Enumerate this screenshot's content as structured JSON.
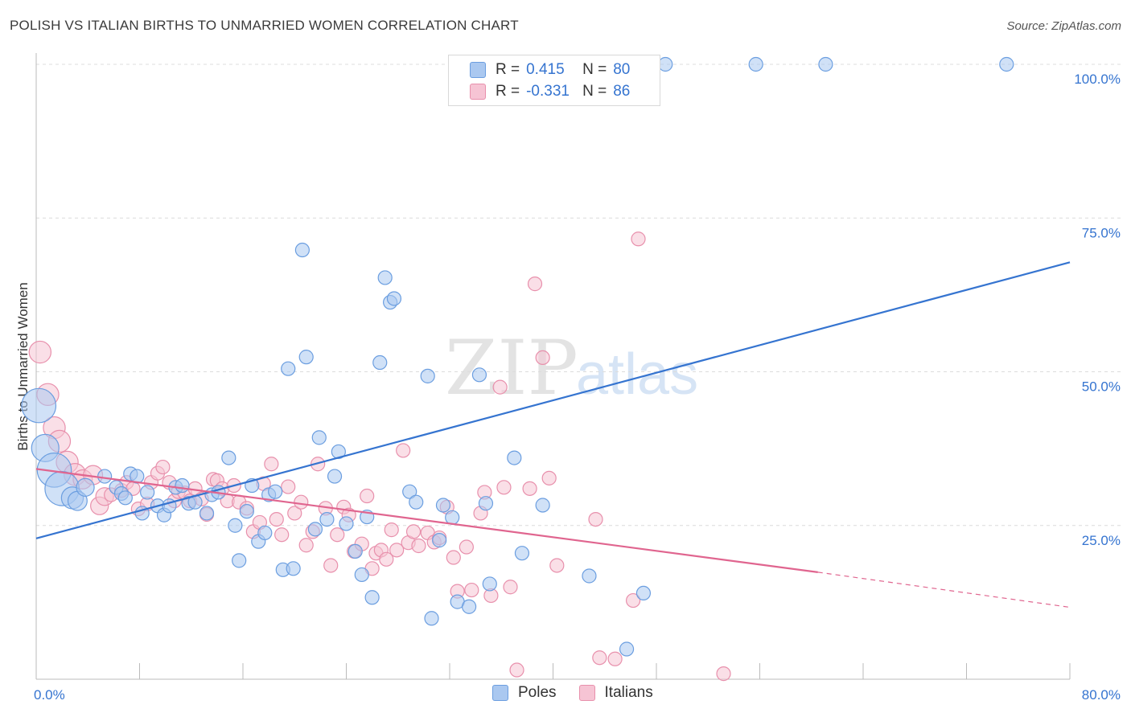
{
  "header": {
    "title": "POLISH VS ITALIAN BIRTHS TO UNMARRIED WOMEN CORRELATION CHART",
    "source": "Source: ZipAtlas.com"
  },
  "watermark": {
    "zip": "ZIP",
    "atlas": "atlas"
  },
  "legend": {
    "rows": [
      {
        "label": "R =",
        "r": "0.415",
        "n_label": "N =",
        "n": "80",
        "color": "#aac8f0",
        "border": "#6b9ee0"
      },
      {
        "label": "R =",
        "r": "-0.331",
        "n_label": "N =",
        "n": "86",
        "color": "#f6c4d4",
        "border": "#e890ac"
      }
    ]
  },
  "bottom_legend": {
    "poles": "Poles",
    "italians": "Italians"
  },
  "chart_data": {
    "type": "scatter",
    "title": "POLISH VS ITALIAN BIRTHS TO UNMARRIED WOMEN CORRELATION CHART",
    "xlabel": "",
    "ylabel": "Births to Unmarried Women",
    "xlim": [
      0,
      80
    ],
    "ylim": [
      0,
      100
    ],
    "x_tick_labels": [
      "0.0%",
      "80.0%"
    ],
    "y_ticks": [
      25,
      50,
      75,
      100
    ],
    "y_tick_labels": [
      "25.0%",
      "50.0%",
      "75.0%",
      "100.0%"
    ],
    "grid": true,
    "legend_position": "top-center",
    "colors": {
      "poles": "#3574d0",
      "italians": "#e0658f",
      "poles_fill": "#aac8f0",
      "italians_fill": "#f6c4d4"
    },
    "series": [
      {
        "name": "Poles",
        "trend": {
          "x": [
            0,
            80
          ],
          "y": [
            22.9,
            67.8
          ]
        },
        "points": [
          [
            0.2,
            44.5,
            2.5
          ],
          [
            0.7,
            37.6,
            2
          ],
          [
            1.4,
            34.0,
            2.5
          ],
          [
            2.0,
            31.0,
            2.5
          ],
          [
            2.8,
            29.5,
            1.6
          ],
          [
            3.2,
            29.0,
            1.4
          ],
          [
            3.8,
            31.2,
            1.3
          ],
          [
            5.3,
            33.0,
            1
          ],
          [
            6.2,
            31.2,
            1
          ],
          [
            6.6,
            30.2,
            1
          ],
          [
            6.9,
            29.5,
            1
          ],
          [
            7.3,
            33.4,
            1
          ],
          [
            7.8,
            33.0,
            1
          ],
          [
            8.2,
            27.0,
            1
          ],
          [
            8.6,
            30.4,
            1
          ],
          [
            9.4,
            28.2,
            1
          ],
          [
            9.9,
            26.7,
            1
          ],
          [
            10.3,
            28.2,
            1
          ],
          [
            10.8,
            31.2,
            1
          ],
          [
            11.3,
            31.5,
            1
          ],
          [
            11.8,
            28.6,
            1
          ],
          [
            12.3,
            28.8,
            1
          ],
          [
            13.2,
            27.0,
            1
          ],
          [
            13.6,
            30.0,
            1
          ],
          [
            14.1,
            30.4,
            1
          ],
          [
            14.9,
            36.0,
            1
          ],
          [
            15.4,
            25.0,
            1
          ],
          [
            15.7,
            19.3,
            1
          ],
          [
            16.3,
            27.3,
            1
          ],
          [
            16.7,
            31.5,
            1
          ],
          [
            17.2,
            22.4,
            1
          ],
          [
            17.7,
            23.8,
            1
          ],
          [
            18.0,
            30.0,
            1
          ],
          [
            18.5,
            30.5,
            1
          ],
          [
            19.1,
            17.8,
            1
          ],
          [
            19.5,
            50.5,
            1
          ],
          [
            19.9,
            18.0,
            1
          ],
          [
            20.6,
            69.8,
            1
          ],
          [
            20.9,
            52.4,
            1
          ],
          [
            21.6,
            24.4,
            1
          ],
          [
            21.9,
            39.3,
            1
          ],
          [
            22.5,
            26.0,
            1
          ],
          [
            23.1,
            33.0,
            1
          ],
          [
            23.4,
            37.0,
            1
          ],
          [
            24.0,
            25.3,
            1
          ],
          [
            24.7,
            20.8,
            1
          ],
          [
            25.2,
            17.0,
            1
          ],
          [
            25.6,
            26.4,
            1
          ],
          [
            26.0,
            13.3,
            1
          ],
          [
            26.6,
            51.5,
            1
          ],
          [
            27.0,
            65.3,
            1
          ],
          [
            27.4,
            61.3,
            1
          ],
          [
            27.7,
            61.9,
            1
          ],
          [
            28.9,
            30.5,
            1
          ],
          [
            29.4,
            28.8,
            1
          ],
          [
            30.3,
            49.3,
            1
          ],
          [
            30.6,
            9.9,
            1
          ],
          [
            31.2,
            22.6,
            1
          ],
          [
            31.5,
            28.3,
            1
          ],
          [
            32.2,
            26.3,
            1
          ],
          [
            32.6,
            12.6,
            1
          ],
          [
            33.5,
            11.8,
            1
          ],
          [
            34.3,
            49.5,
            1
          ],
          [
            34.8,
            28.6,
            1
          ],
          [
            35.1,
            15.5,
            1
          ],
          [
            37.0,
            36.0,
            1
          ],
          [
            37.6,
            20.5,
            1
          ],
          [
            39.2,
            28.3,
            1
          ],
          [
            42.8,
            16.8,
            1
          ],
          [
            45.7,
            4.9,
            1
          ],
          [
            47.0,
            14.0,
            1
          ],
          [
            35.7,
            100.0,
            1
          ],
          [
            48.7,
            100.0,
            1
          ],
          [
            55.7,
            100.0,
            1
          ],
          [
            61.1,
            100.0,
            1
          ],
          [
            75.1,
            100.0,
            1
          ]
        ]
      },
      {
        "name": "Italians",
        "trend": {
          "x": [
            0,
            60.5
          ],
          "y": [
            34.2,
            17.4
          ]
        },
        "trend_dashed": {
          "x": [
            60.5,
            80
          ],
          "y": [
            17.4,
            11.7
          ]
        },
        "points": [
          [
            0.3,
            53.2,
            1.6
          ],
          [
            0.9,
            46.3,
            1.6
          ],
          [
            1.4,
            40.9,
            1.6
          ],
          [
            1.8,
            38.7,
            1.6
          ],
          [
            2.4,
            35.3,
            1.6
          ],
          [
            3.0,
            33.3,
            1.6
          ],
          [
            3.6,
            32.5,
            1.4
          ],
          [
            4.4,
            33.2,
            1.4
          ],
          [
            4.9,
            28.2,
            1.3
          ],
          [
            5.3,
            29.7,
            1.3
          ],
          [
            5.8,
            30.0,
            1
          ],
          [
            6.6,
            30.7,
            1
          ],
          [
            7.0,
            32.0,
            1
          ],
          [
            7.5,
            31.0,
            1
          ],
          [
            7.9,
            27.7,
            1
          ],
          [
            8.6,
            28.5,
            1
          ],
          [
            8.9,
            32.0,
            1
          ],
          [
            9.4,
            33.5,
            1
          ],
          [
            9.8,
            34.5,
            1
          ],
          [
            10.3,
            32.0,
            1
          ],
          [
            10.7,
            29.0,
            1
          ],
          [
            11.0,
            30.5,
            1
          ],
          [
            11.5,
            30.3,
            1
          ],
          [
            11.9,
            29.0,
            1
          ],
          [
            12.3,
            31.0,
            1
          ],
          [
            12.8,
            29.3,
            1
          ],
          [
            13.2,
            26.8,
            1
          ],
          [
            13.7,
            32.5,
            1
          ],
          [
            14.0,
            32.3,
            1
          ],
          [
            14.4,
            31.0,
            1
          ],
          [
            14.8,
            29.0,
            1
          ],
          [
            15.3,
            31.5,
            1
          ],
          [
            15.7,
            28.8,
            1
          ],
          [
            16.3,
            27.8,
            1
          ],
          [
            16.8,
            24.0,
            1
          ],
          [
            17.3,
            25.5,
            1
          ],
          [
            17.6,
            31.8,
            1
          ],
          [
            18.2,
            35.0,
            1
          ],
          [
            18.6,
            26.0,
            1
          ],
          [
            19.0,
            23.5,
            1
          ],
          [
            19.5,
            31.3,
            1
          ],
          [
            20.0,
            27.0,
            1
          ],
          [
            20.5,
            28.8,
            1
          ],
          [
            20.9,
            21.8,
            1
          ],
          [
            21.4,
            24.0,
            1
          ],
          [
            21.8,
            35.0,
            1
          ],
          [
            22.4,
            27.8,
            1
          ],
          [
            22.8,
            18.5,
            1
          ],
          [
            23.3,
            23.5,
            1
          ],
          [
            23.8,
            28.0,
            1
          ],
          [
            24.2,
            26.7,
            1
          ],
          [
            24.6,
            20.8,
            1
          ],
          [
            25.2,
            22.0,
            1
          ],
          [
            25.6,
            29.8,
            1
          ],
          [
            26.0,
            18.0,
            1
          ],
          [
            26.3,
            20.5,
            1
          ],
          [
            26.7,
            21.0,
            1
          ],
          [
            27.1,
            19.5,
            1
          ],
          [
            27.5,
            24.3,
            1
          ],
          [
            27.9,
            21.0,
            1
          ],
          [
            28.4,
            37.2,
            1
          ],
          [
            28.8,
            22.2,
            1
          ],
          [
            29.2,
            24.0,
            1
          ],
          [
            29.6,
            21.7,
            1
          ],
          [
            30.3,
            23.8,
            1
          ],
          [
            30.8,
            22.3,
            1
          ],
          [
            31.2,
            23.0,
            1
          ],
          [
            31.8,
            28.0,
            1
          ],
          [
            32.3,
            19.8,
            1
          ],
          [
            32.6,
            14.3,
            1
          ],
          [
            33.3,
            21.5,
            1
          ],
          [
            33.7,
            14.5,
            1
          ],
          [
            34.4,
            27.0,
            1
          ],
          [
            34.7,
            30.4,
            1
          ],
          [
            35.2,
            13.6,
            1
          ],
          [
            35.9,
            47.5,
            1
          ],
          [
            36.2,
            31.2,
            1
          ],
          [
            36.7,
            15.0,
            1
          ],
          [
            37.2,
            1.5,
            1
          ],
          [
            38.2,
            31.0,
            1
          ],
          [
            38.6,
            64.3,
            1
          ],
          [
            39.2,
            52.3,
            1
          ],
          [
            39.7,
            32.7,
            1
          ],
          [
            40.3,
            18.5,
            1
          ],
          [
            43.3,
            26.0,
            1
          ],
          [
            43.6,
            3.5,
            1
          ],
          [
            44.8,
            3.3,
            1
          ],
          [
            46.2,
            12.8,
            1
          ],
          [
            46.6,
            71.6,
            1
          ],
          [
            53.2,
            0.9,
            1
          ]
        ]
      }
    ]
  }
}
